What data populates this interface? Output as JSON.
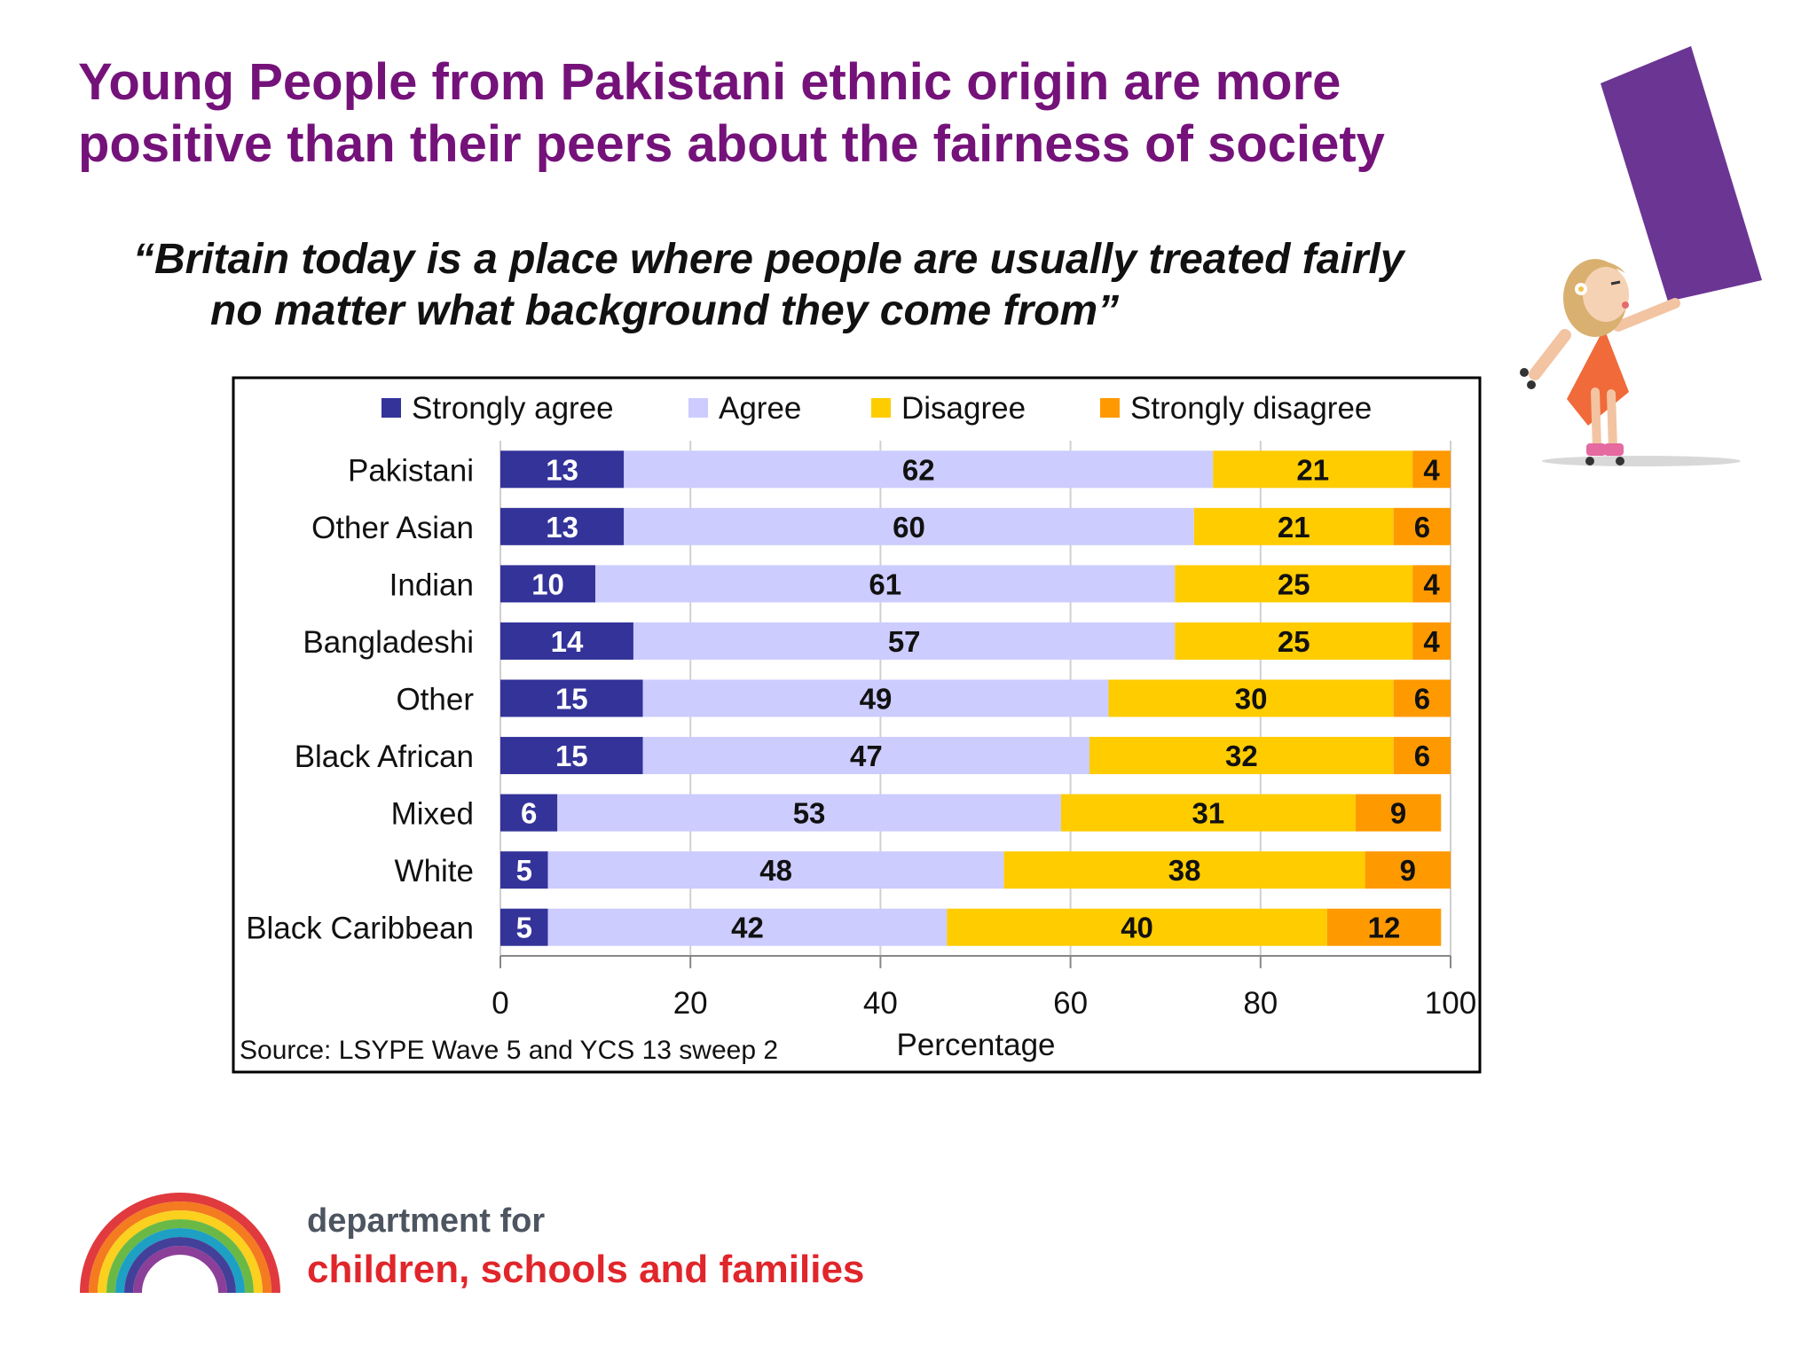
{
  "title_line1": "Young People from Pakistani ethnic origin are more",
  "title_line2": "positive than their peers about the fairness of society",
  "quote_line1": "“Britain today is a place where people are usually treated fairly",
  "quote_line2": "no matter what background they come from”",
  "logo": {
    "line1": "department for",
    "line2": "children, schools and families",
    "rainbow_colors": [
      "#e03a3e",
      "#f47b20",
      "#fbd01e",
      "#6ab946",
      "#1da0c4",
      "#43409a",
      "#8b3f98"
    ]
  },
  "chart_data": {
    "type": "bar",
    "orientation": "horizontal",
    "stacked": true,
    "categories": [
      "Pakistani",
      "Other Asian",
      "Indian",
      "Bangladeshi",
      "Other",
      "Black African",
      "Mixed",
      "White",
      "Black Caribbean"
    ],
    "series": [
      {
        "name": "Strongly agree",
        "color": "#33339a",
        "label_color": "#ffffff",
        "values": [
          13,
          13,
          10,
          14,
          15,
          15,
          6,
          5,
          5
        ]
      },
      {
        "name": "Agree",
        "color": "#ccccff",
        "label_color": "#111111",
        "values": [
          62,
          60,
          61,
          57,
          49,
          47,
          53,
          48,
          42
        ]
      },
      {
        "name": "Disagree",
        "color": "#ffcc00",
        "label_color": "#111111",
        "values": [
          21,
          21,
          25,
          25,
          30,
          32,
          31,
          38,
          40
        ]
      },
      {
        "name": "Strongly disagree",
        "color": "#ff9900",
        "label_color": "#111111",
        "values": [
          4,
          6,
          4,
          4,
          6,
          6,
          9,
          9,
          12
        ]
      }
    ],
    "xlabel": "Percentage",
    "xlim": [
      0,
      100
    ],
    "xticks": [
      0,
      20,
      40,
      60,
      80,
      100
    ],
    "grid": true,
    "legend": "top",
    "source": "Source:  LSYPE Wave 5 and YCS 13 sweep 2"
  }
}
